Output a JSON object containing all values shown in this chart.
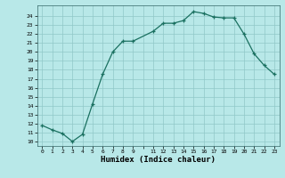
{
  "x": [
    0,
    1,
    2,
    3,
    4,
    5,
    6,
    7,
    8,
    9,
    11,
    12,
    13,
    14,
    15,
    16,
    17,
    18,
    19,
    20,
    21,
    22,
    23
  ],
  "y": [
    11.8,
    11.3,
    10.9,
    10.0,
    10.8,
    14.2,
    17.5,
    20.0,
    21.2,
    21.2,
    22.3,
    23.2,
    23.2,
    23.5,
    24.5,
    24.3,
    23.9,
    23.8,
    23.8,
    22.0,
    19.8,
    18.5,
    17.5
  ],
  "line_color": "#1a7060",
  "marker_color": "#1a7060",
  "bg_color": "#b8e8e8",
  "grid_color": "#90c8c8",
  "xlabel": "Humidex (Indice chaleur)",
  "xlabel_fontsize": 6.5,
  "xtick_labels": [
    "0",
    "1",
    "2",
    "3",
    "4",
    "5",
    "6",
    "7",
    "8",
    "9",
    "",
    "11",
    "12",
    "13",
    "14",
    "15",
    "16",
    "17",
    "18",
    "19",
    "20",
    "21",
    "22",
    "23"
  ],
  "xtick_positions": [
    0,
    1,
    2,
    3,
    4,
    5,
    6,
    7,
    8,
    9,
    10,
    11,
    12,
    13,
    14,
    15,
    16,
    17,
    18,
    19,
    20,
    21,
    22,
    23
  ],
  "ytick_min": 10,
  "ytick_max": 24,
  "ylim": [
    9.5,
    25.2
  ],
  "xlim": [
    -0.5,
    23.5
  ]
}
